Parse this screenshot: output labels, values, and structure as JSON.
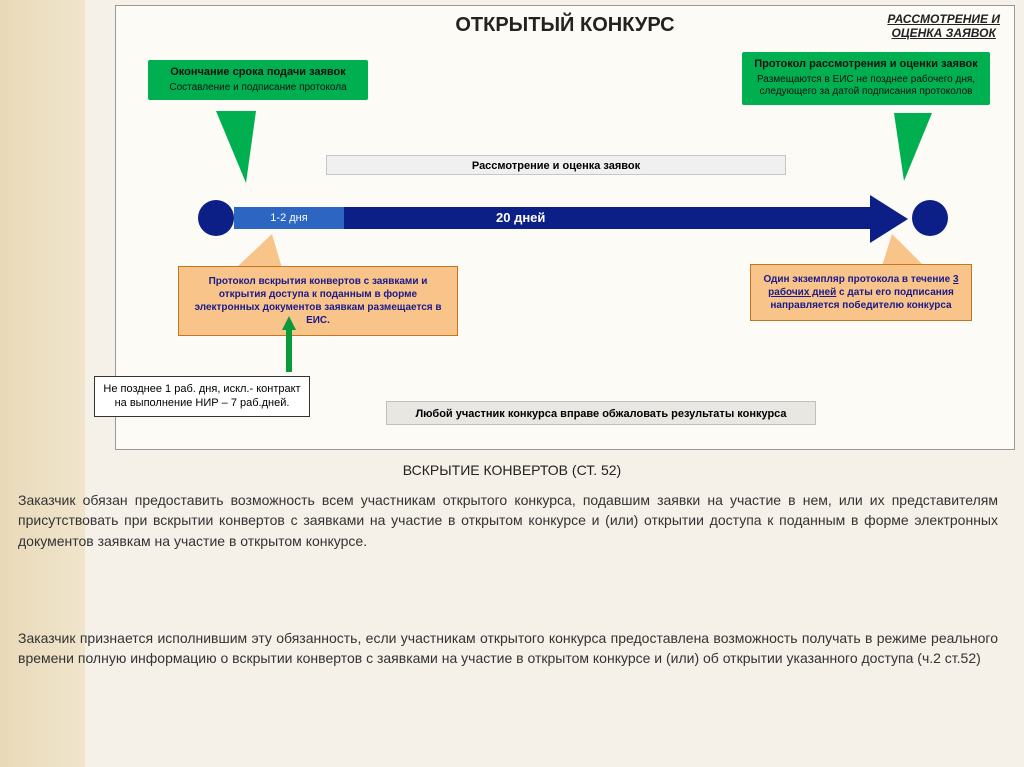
{
  "colors": {
    "green": "#00b050",
    "blue": "#0b1f87",
    "lightblue": "#2c66c2",
    "orange": "#f9c48a",
    "orangeBorder": "#c07820",
    "uparrow": "#0a9a3a",
    "page_bg": "#f5f0e8",
    "diagram_bg": "#fcfbf5"
  },
  "titles": {
    "main": "ОТКРЫТЫЙ КОНКУРС",
    "right": "РАССМОТРЕНИЕ И\nОЦЕНКА ЗАЯВОК",
    "section": "ВСКРЫТИЕ КОНВЕРТОВ (СТ. 52)"
  },
  "callout_green_left": {
    "hdr": "Окончание срока подачи заявок",
    "sub": "Составление и подписание протокола"
  },
  "callout_green_right": {
    "hdr": "Протокол рассмотрения и оценки заявок",
    "sub": "Размещаются в ЕИС не позднее рабочего дня, следующего за датой подписания протоколов"
  },
  "midbar": "Рассмотрение и оценка заявок",
  "timeline": {
    "seg1": "1-2 дня",
    "seg2": "20 дней"
  },
  "callout_orange_left": "Протокол вскрытия конвертов с заявками и открытия доступа к поданным в форме электронных документов заявкам размещается в ЕИС.",
  "callout_orange_right_1": "Один экземпляр протокола в течение ",
  "callout_orange_right_u": "3 рабочих дней",
  "callout_orange_right_2": " с даты его подписания направляется победителю конкурса",
  "note": "Не позднее 1 раб. дня, искл.- контракт на выполнение  НИР – 7 раб.дней.",
  "banner": "Любой участник конкурса вправе обжаловать результаты конкурса",
  "para1": "Заказчик обязан предоставить возможность всем участникам открытого конкурса, подавшим заявки на участие в нем, или их представителям присутствовать при вскрытии конвертов с заявками на участие в открытом конкурсе и (или) открытии доступа к поданным в форме электронных документов заявкам на участие в открытом конкурсе.",
  "para2": "Заказчик признается исполнившим эту обязанность, если участникам открытого конкурса предоставлена возможность получать в режиме реального времени полную информацию о вскрытии конвертов с заявками на участие в открытом конкурсе и (или) об открытии указанного доступа  (ч.2 ст.52)"
}
